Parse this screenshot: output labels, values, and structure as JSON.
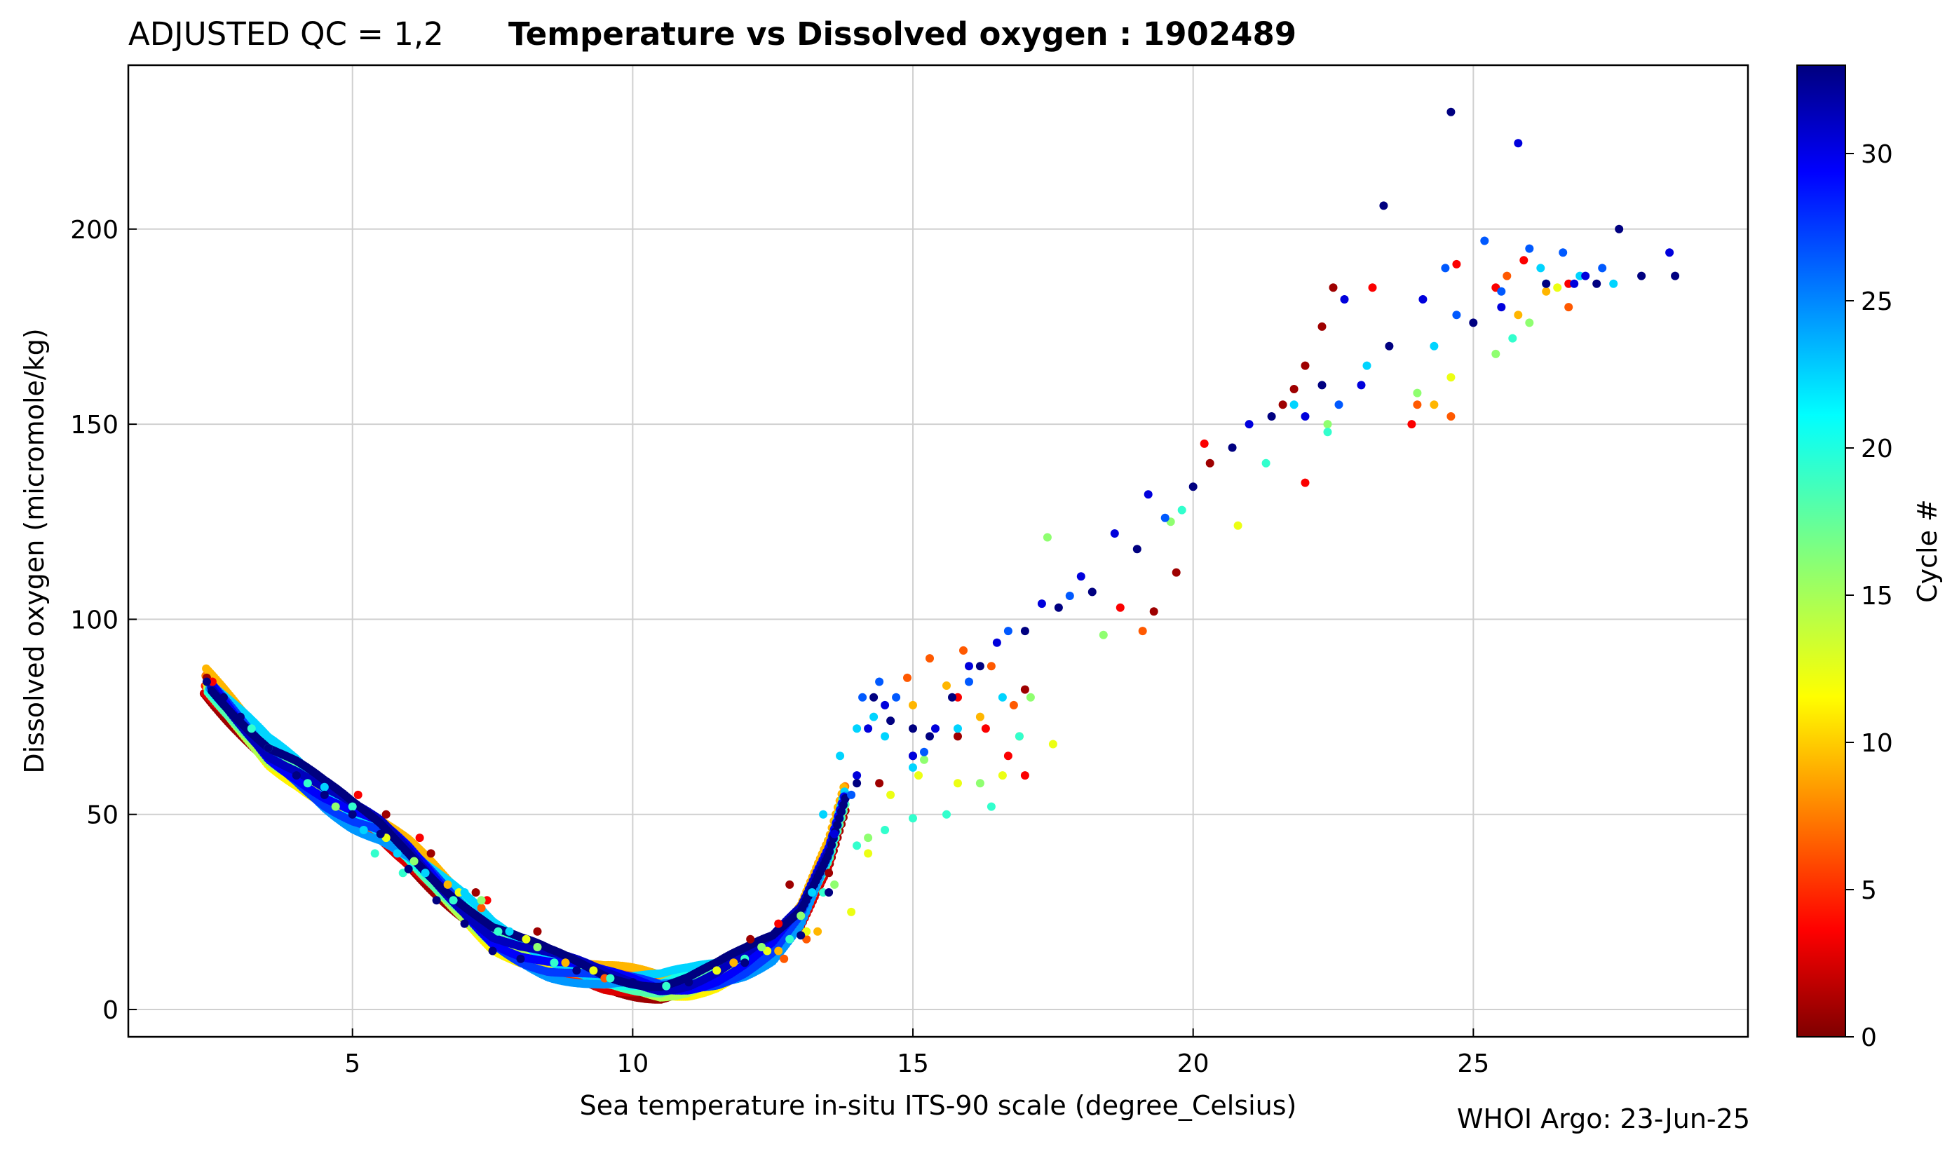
{
  "header": {
    "qc_label": "ADJUSTED QC = 1,2",
    "title": "Temperature vs Dissolved oxygen : 1902489"
  },
  "footer": {
    "credit": "WHOI Argo: 23-Jun-25"
  },
  "chart_data": {
    "type": "scatter",
    "title": "Temperature vs Dissolved oxygen : 1902489",
    "xlabel": "Sea temperature in-situ ITS-90 scale  (degree_Celsius)",
    "ylabel": "Dissolved oxygen  (micromole/kg)",
    "xlim": [
      1.0,
      29.9
    ],
    "ylim": [
      -7,
      242
    ],
    "xticks": [
      5,
      10,
      15,
      20,
      25
    ],
    "yticks": [
      0,
      50,
      100,
      150,
      200
    ],
    "grid": true,
    "colorbar": {
      "label": "Cycle #",
      "min": 0,
      "max": 33,
      "ticks": [
        0,
        5,
        10,
        15,
        20,
        25,
        30
      ],
      "colormap": "jet"
    },
    "trend_points": [
      [
        2.3,
        85
      ],
      [
        3.0,
        74
      ],
      [
        3.5,
        66
      ],
      [
        4.0,
        61
      ],
      [
        4.5,
        55
      ],
      [
        5.0,
        50
      ],
      [
        5.5,
        46
      ],
      [
        6.0,
        40
      ],
      [
        6.5,
        33
      ],
      [
        7.0,
        26
      ],
      [
        7.5,
        19
      ],
      [
        8.0,
        15
      ],
      [
        8.5,
        12
      ],
      [
        9.0,
        10
      ],
      [
        9.5,
        8
      ],
      [
        10.0,
        7
      ],
      [
        10.5,
        6
      ],
      [
        11.0,
        7
      ],
      [
        11.5,
        9
      ],
      [
        12.0,
        12
      ],
      [
        12.5,
        16
      ],
      [
        13.0,
        24
      ],
      [
        13.5,
        40
      ],
      [
        14.0,
        65
      ],
      [
        14.5,
        75
      ],
      [
        15.0,
        70
      ],
      [
        15.5,
        78
      ],
      [
        16.0,
        85
      ],
      [
        17.0,
        95
      ],
      [
        18.0,
        105
      ],
      [
        19.0,
        118
      ],
      [
        20.0,
        132
      ],
      [
        21.0,
        148
      ],
      [
        22.0,
        160
      ],
      [
        23.0,
        168
      ],
      [
        24.0,
        175
      ],
      [
        25.0,
        182
      ],
      [
        26.0,
        187
      ],
      [
        27.0,
        188
      ],
      [
        28.0,
        189
      ],
      [
        28.6,
        188
      ]
    ],
    "curve_cycles": [
      1,
      3,
      5,
      8,
      10,
      12,
      15,
      18,
      20,
      22,
      24,
      27,
      29,
      31,
      33
    ],
    "series": [
      {
        "cycle": 33,
        "points": [
          [
            2.4,
            84
          ],
          [
            2.7,
            80
          ],
          [
            3.0,
            75
          ],
          [
            3.5,
            67
          ],
          [
            4.0,
            60
          ],
          [
            4.5,
            55
          ],
          [
            5.0,
            50
          ],
          [
            5.5,
            45
          ],
          [
            6.0,
            36
          ],
          [
            6.5,
            28
          ],
          [
            7.0,
            22
          ],
          [
            7.5,
            15
          ],
          [
            8.0,
            13
          ],
          [
            9.0,
            10
          ],
          [
            10.0,
            7
          ],
          [
            11.0,
            7
          ],
          [
            12.0,
            12
          ],
          [
            13.0,
            19
          ],
          [
            13.5,
            30
          ],
          [
            14.0,
            58
          ],
          [
            14.3,
            80
          ],
          [
            14.6,
            74
          ],
          [
            15.0,
            72
          ],
          [
            15.3,
            70
          ],
          [
            15.7,
            80
          ],
          [
            16.2,
            88
          ],
          [
            17.0,
            97
          ],
          [
            17.6,
            103
          ],
          [
            18.2,
            107
          ],
          [
            19.0,
            118
          ],
          [
            20.0,
            134
          ],
          [
            20.7,
            144
          ],
          [
            21.4,
            152
          ],
          [
            22.3,
            160
          ],
          [
            23.5,
            170
          ],
          [
            25.0,
            176
          ],
          [
            26.3,
            186
          ],
          [
            27.2,
            186
          ],
          [
            28.0,
            188
          ],
          [
            28.6,
            188
          ],
          [
            27.6,
            200
          ]
        ]
      },
      {
        "cycle": 30,
        "points": [
          [
            13.6,
            45
          ],
          [
            14.0,
            60
          ],
          [
            14.2,
            72
          ],
          [
            14.5,
            78
          ],
          [
            15.0,
            65
          ],
          [
            15.4,
            72
          ],
          [
            16.0,
            88
          ],
          [
            16.5,
            94
          ],
          [
            17.3,
            104
          ],
          [
            18.0,
            111
          ],
          [
            18.6,
            122
          ],
          [
            19.2,
            132
          ],
          [
            21.0,
            150
          ],
          [
            22.0,
            152
          ],
          [
            23.0,
            160
          ],
          [
            24.1,
            182
          ],
          [
            25.5,
            180
          ],
          [
            27.0,
            188
          ],
          [
            28.5,
            194
          ],
          [
            22.7,
            182
          ],
          [
            26.8,
            186
          ],
          [
            25.8,
            222
          ]
        ]
      },
      {
        "cycle": 26,
        "points": [
          [
            13.9,
            55
          ],
          [
            14.1,
            80
          ],
          [
            14.4,
            84
          ],
          [
            14.7,
            80
          ],
          [
            15.2,
            66
          ],
          [
            16.0,
            84
          ],
          [
            16.7,
            97
          ],
          [
            17.8,
            106
          ],
          [
            19.5,
            126
          ],
          [
            22.6,
            155
          ],
          [
            24.7,
            178
          ],
          [
            25.2,
            197
          ],
          [
            26.0,
            195
          ],
          [
            26.6,
            194
          ],
          [
            27.3,
            190
          ],
          [
            25.5,
            184
          ],
          [
            24.5,
            190
          ]
        ]
      },
      {
        "cycle": 22,
        "points": [
          [
            3.5,
            67
          ],
          [
            4.5,
            57
          ],
          [
            5.2,
            46
          ],
          [
            5.8,
            40
          ],
          [
            6.3,
            35
          ],
          [
            7.0,
            30
          ],
          [
            7.8,
            20
          ],
          [
            13.2,
            30
          ],
          [
            13.4,
            50
          ],
          [
            13.7,
            65
          ],
          [
            14.0,
            72
          ],
          [
            14.3,
            75
          ],
          [
            14.5,
            70
          ],
          [
            15.0,
            62
          ],
          [
            15.8,
            72
          ],
          [
            16.6,
            80
          ],
          [
            21.8,
            155
          ],
          [
            23.1,
            165
          ],
          [
            24.3,
            170
          ],
          [
            26.2,
            190
          ],
          [
            26.9,
            188
          ],
          [
            27.5,
            186
          ]
        ]
      },
      {
        "cycle": 19,
        "points": [
          [
            3.2,
            72
          ],
          [
            4.2,
            58
          ],
          [
            5.0,
            52
          ],
          [
            5.4,
            40
          ],
          [
            5.9,
            35
          ],
          [
            6.8,
            28
          ],
          [
            7.6,
            20
          ],
          [
            8.6,
            12
          ],
          [
            9.6,
            8
          ],
          [
            10.6,
            6
          ],
          [
            12.0,
            13
          ],
          [
            12.8,
            18
          ],
          [
            13.4,
            30
          ],
          [
            14.0,
            42
          ],
          [
            14.5,
            46
          ],
          [
            15.0,
            49
          ],
          [
            15.6,
            50
          ],
          [
            16.4,
            52
          ],
          [
            16.9,
            70
          ],
          [
            19.8,
            128
          ],
          [
            21.3,
            140
          ],
          [
            22.4,
            148
          ],
          [
            25.7,
            172
          ],
          [
            26.3,
            186
          ]
        ]
      },
      {
        "cycle": 16,
        "points": [
          [
            4.7,
            52
          ],
          [
            6.1,
            38
          ],
          [
            7.3,
            28
          ],
          [
            8.3,
            16
          ],
          [
            12.3,
            16
          ],
          [
            13.0,
            24
          ],
          [
            13.6,
            32
          ],
          [
            14.2,
            44
          ],
          [
            15.2,
            64
          ],
          [
            16.2,
            58
          ],
          [
            17.1,
            80
          ],
          [
            17.4,
            121
          ],
          [
            18.4,
            96
          ],
          [
            19.6,
            125
          ],
          [
            22.4,
            150
          ],
          [
            24.0,
            158
          ],
          [
            25.4,
            168
          ],
          [
            26.0,
            176
          ]
        ]
      },
      {
        "cycle": 13,
        "points": [
          [
            5.6,
            44
          ],
          [
            6.9,
            30
          ],
          [
            8.1,
            18
          ],
          [
            9.3,
            10
          ],
          [
            11.5,
            10
          ],
          [
            12.4,
            15
          ],
          [
            13.1,
            20
          ],
          [
            13.9,
            25
          ],
          [
            14.2,
            40
          ],
          [
            14.6,
            55
          ],
          [
            15.1,
            60
          ],
          [
            15.8,
            58
          ],
          [
            16.6,
            60
          ],
          [
            17.5,
            68
          ],
          [
            20.8,
            124
          ],
          [
            24.6,
            162
          ],
          [
            26.5,
            185
          ]
        ]
      },
      {
        "cycle": 10,
        "points": [
          [
            6.7,
            32
          ],
          [
            8.8,
            12
          ],
          [
            11.8,
            12
          ],
          [
            12.6,
            15
          ],
          [
            13.3,
            20
          ],
          [
            15.0,
            78
          ],
          [
            15.6,
            83
          ],
          [
            16.2,
            75
          ],
          [
            16.9,
            70
          ],
          [
            24.3,
            155
          ],
          [
            25.8,
            178
          ],
          [
            26.3,
            184
          ]
        ]
      },
      {
        "cycle": 7,
        "points": [
          [
            7.3,
            26
          ],
          [
            9.5,
            8
          ],
          [
            12.7,
            13
          ],
          [
            13.1,
            18
          ],
          [
            14.9,
            85
          ],
          [
            15.3,
            90
          ],
          [
            15.9,
            92
          ],
          [
            16.4,
            88
          ],
          [
            16.8,
            78
          ],
          [
            19.1,
            97
          ],
          [
            24.0,
            155
          ],
          [
            24.6,
            152
          ],
          [
            25.6,
            188
          ],
          [
            26.7,
            180
          ]
        ]
      },
      {
        "cycle": 4,
        "points": [
          [
            2.5,
            84
          ],
          [
            5.1,
            55
          ],
          [
            6.2,
            44
          ],
          [
            7.4,
            28
          ],
          [
            12.6,
            22
          ],
          [
            15.8,
            80
          ],
          [
            16.3,
            72
          ],
          [
            16.7,
            65
          ],
          [
            17.0,
            60
          ],
          [
            18.7,
            103
          ],
          [
            20.2,
            145
          ],
          [
            22.0,
            135
          ],
          [
            23.2,
            185
          ],
          [
            24.7,
            191
          ],
          [
            25.4,
            185
          ],
          [
            25.9,
            192
          ],
          [
            26.7,
            186
          ],
          [
            23.9,
            150
          ]
        ]
      },
      {
        "cycle": 1,
        "points": [
          [
            2.4,
            85
          ],
          [
            5.6,
            50
          ],
          [
            6.4,
            40
          ],
          [
            7.2,
            30
          ],
          [
            8.3,
            20
          ],
          [
            12.1,
            18
          ],
          [
            12.8,
            32
          ],
          [
            13.5,
            35
          ],
          [
            14.4,
            58
          ],
          [
            15.0,
            65
          ],
          [
            15.8,
            70
          ],
          [
            17.0,
            82
          ],
          [
            19.3,
            102
          ],
          [
            19.7,
            112
          ],
          [
            21.6,
            155
          ],
          [
            22.0,
            165
          ],
          [
            22.3,
            175
          ],
          [
            22.5,
            185
          ],
          [
            21.8,
            159
          ],
          [
            20.3,
            140
          ]
        ]
      }
    ],
    "outliers": [
      {
        "cycle": 33,
        "x": 24.6,
        "y": 230
      },
      {
        "cycle": 33,
        "x": 23.4,
        "y": 206
      }
    ]
  }
}
